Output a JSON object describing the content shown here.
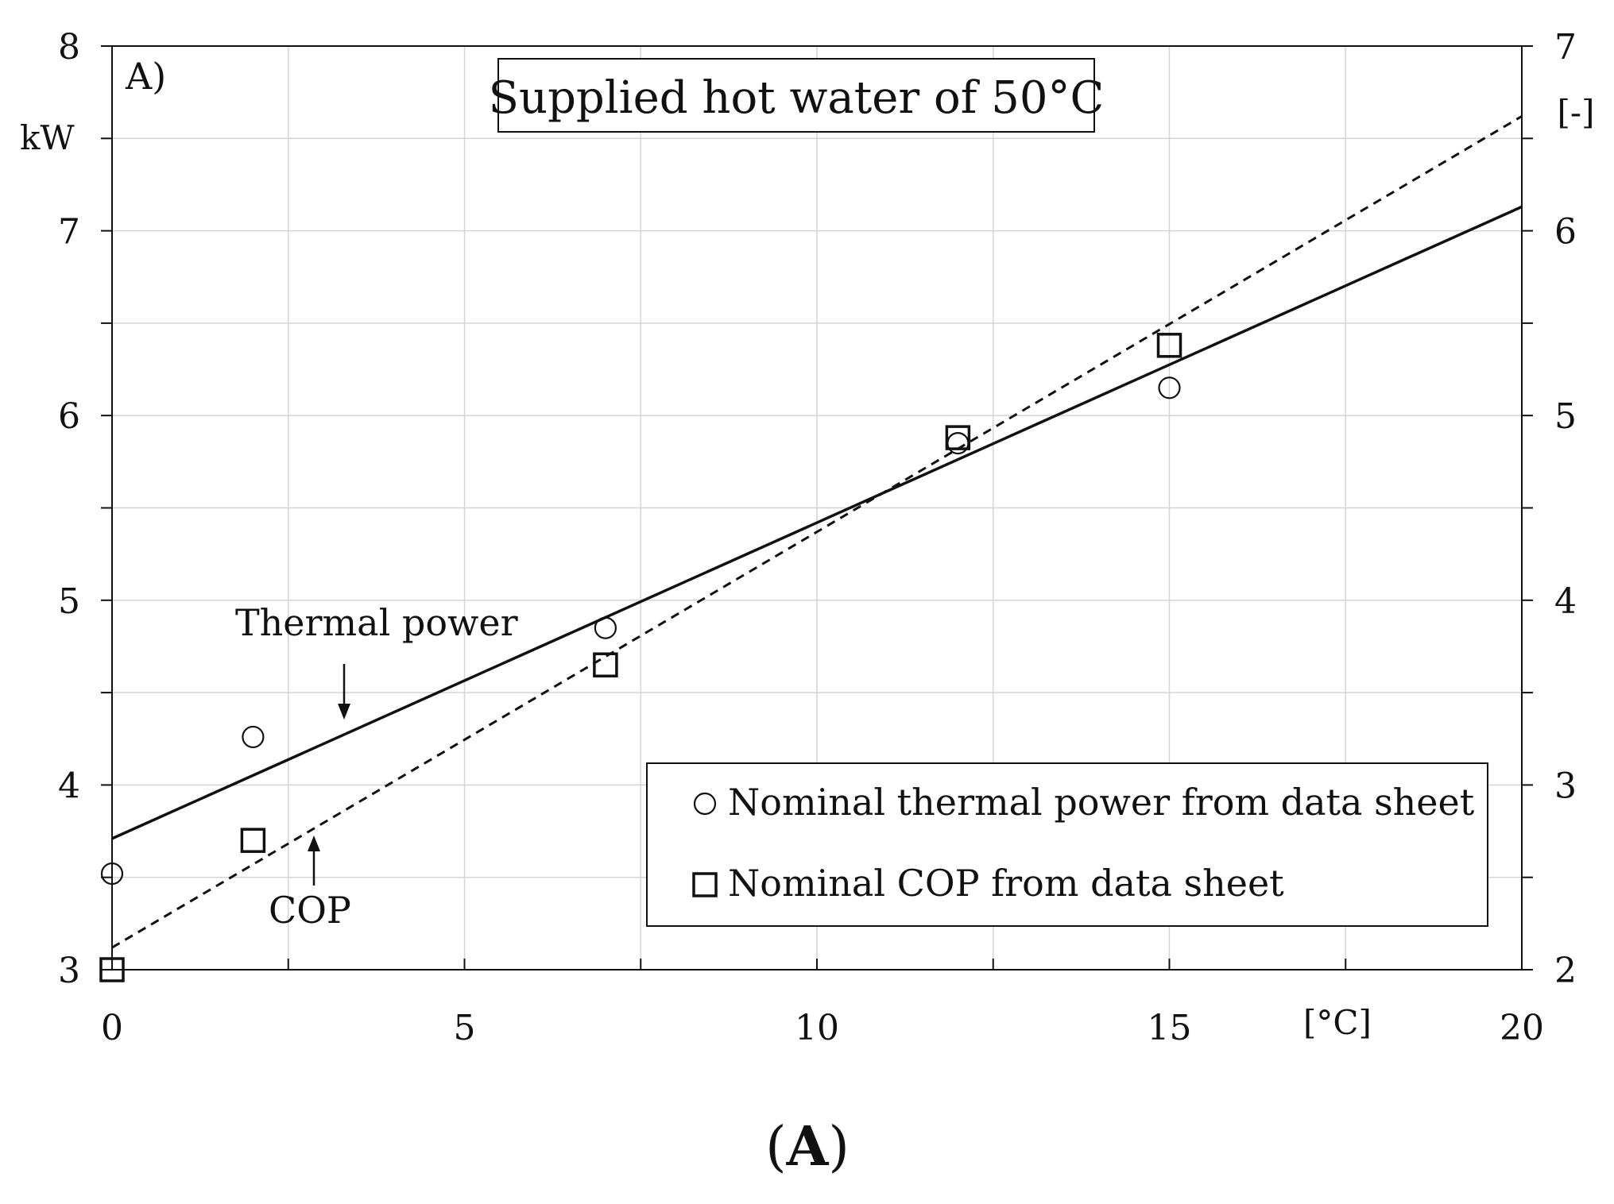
{
  "chart_data": {
    "type": "scatter",
    "panel_label": "A)",
    "title": "Supplied hot water of 50°C",
    "caption": {
      "open": "(",
      "letter": "A",
      "close": ")"
    },
    "x_axis": {
      "unit_label": "[°C]",
      "range": [
        0,
        20
      ],
      "major_ticks": [
        0,
        5,
        10,
        15,
        20
      ],
      "minor_step": 2.5
    },
    "y_left_axis": {
      "unit_label": "kW",
      "range": [
        3,
        8
      ],
      "major_ticks": [
        3,
        4,
        5,
        6,
        7,
        8
      ],
      "minor_step": 0.5
    },
    "y_right_axis": {
      "unit_label": "[-]",
      "range": [
        2,
        7
      ],
      "major_ticks": [
        2,
        3,
        4,
        5,
        6,
        7
      ],
      "minor_step": 0.5
    },
    "grid": true,
    "series": [
      {
        "name": "Nominal thermal power from data sheet",
        "marker": "circle",
        "axis": "left",
        "x": [
          0,
          2,
          7,
          12,
          15
        ],
        "y": [
          3.52,
          4.26,
          4.85,
          5.85,
          6.15
        ]
      },
      {
        "name": "Nominal COP from data sheet",
        "marker": "square",
        "axis": "right",
        "x": [
          0,
          2,
          7,
          12,
          15
        ],
        "y": [
          2.0,
          2.7,
          3.65,
          4.88,
          5.38
        ]
      }
    ],
    "fit_lines": [
      {
        "name": "Thermal power",
        "style": "solid",
        "axis": "left",
        "x": [
          0,
          20
        ],
        "y": [
          3.71,
          7.13
        ]
      },
      {
        "name": "COP",
        "style": "dashed",
        "axis": "right",
        "x": [
          0,
          20
        ],
        "y": [
          2.12,
          6.62
        ]
      }
    ],
    "annotations": [
      {
        "text": "Thermal power",
        "target_line": "Thermal power",
        "arrow": "down"
      },
      {
        "text": "COP",
        "target_line": "COP",
        "arrow": "up"
      }
    ],
    "legend": {
      "placement": "bottom-right",
      "entries": [
        {
          "marker": "circle",
          "label": "Nominal thermal power from data sheet"
        },
        {
          "marker": "square",
          "label": "Nominal COP from data sheet"
        }
      ]
    }
  }
}
